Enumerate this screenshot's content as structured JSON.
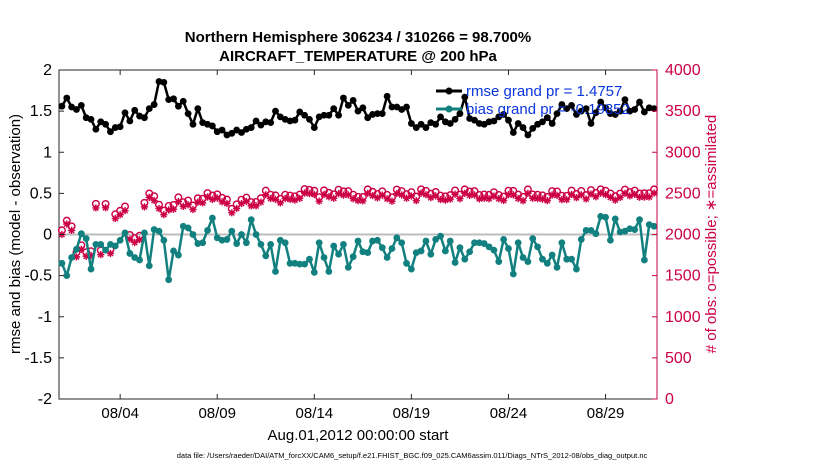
{
  "colors": {
    "rmse": "#000000",
    "bias": "#138080",
    "obs": "#CC0044",
    "legend_text": "#0B35DD",
    "zero_line": "#BDBDBD"
  },
  "chart_data": {
    "type": "line",
    "title": "Northern Hemisphere 306234 / 310266 = 98.700%",
    "subtitle": "AIRCRAFT_TEMPERATURE @ 200 hPa",
    "ylabel_left": "rmse and bias (model - observation)",
    "ylabel_right": "# of obs: o=possible; ∗=assimilated",
    "xlabel": "Aug.01,2012 00:00:00 start",
    "footnote": "data file: /Users/raeder/DAI/ATM_forcXX/CAM6_setup/f.e21.FHIST_BGC.f09_025.CAM6assim.011/Diags_NTrS_2012-08/obs_diag_output.nc",
    "xlim": [
      0.85,
      31.65
    ],
    "ylim_left": [
      -2,
      2
    ],
    "ylim_right": [
      0,
      4000
    ],
    "left_ticks": [
      -2,
      -1.5,
      -1,
      -0.5,
      0,
      0.5,
      1,
      1.5,
      2
    ],
    "left_tick_labels": [
      "-2",
      "-1.5",
      "-1",
      "-0.5",
      "0",
      "0.5",
      "1",
      "1.5",
      "2"
    ],
    "right_ticks": [
      0,
      500,
      1000,
      1500,
      2000,
      2500,
      3000,
      3500,
      4000
    ],
    "right_tick_labels": [
      "0",
      "500",
      "1000",
      "1500",
      "2000",
      "2500",
      "3000",
      "3500",
      "4000"
    ],
    "x_ticks": [
      4,
      9,
      14,
      19,
      24,
      29
    ],
    "x_tick_labels": [
      "08/04",
      "08/09",
      "08/14",
      "08/19",
      "08/24",
      "08/29"
    ],
    "zero_line_y": 0,
    "legend": {
      "position": "top-right",
      "entries": [
        "rmse grand pr = 1.4757",
        "bias grand pr = -0.19852"
      ]
    },
    "x": [
      1.0,
      1.25,
      1.5,
      1.75,
      2.0,
      2.25,
      2.5,
      2.75,
      3.0,
      3.25,
      3.5,
      3.75,
      4.0,
      4.25,
      4.5,
      4.75,
      5.0,
      5.25,
      5.5,
      5.75,
      6.0,
      6.25,
      6.5,
      6.75,
      7.0,
      7.25,
      7.5,
      7.75,
      8.0,
      8.25,
      8.5,
      8.75,
      9.0,
      9.25,
      9.5,
      9.75,
      10.0,
      10.25,
      10.5,
      10.75,
      11.0,
      11.25,
      11.5,
      11.75,
      12.0,
      12.25,
      12.5,
      12.75,
      13.0,
      13.25,
      13.5,
      13.75,
      14.0,
      14.25,
      14.5,
      14.75,
      15.0,
      15.25,
      15.5,
      15.75,
      16.0,
      16.25,
      16.5,
      16.75,
      17.0,
      17.25,
      17.5,
      17.75,
      18.0,
      18.25,
      18.5,
      18.75,
      19.0,
      19.25,
      19.5,
      19.75,
      20.0,
      20.25,
      20.5,
      20.75,
      21.0,
      21.25,
      21.5,
      21.75,
      22.0,
      22.25,
      22.5,
      22.75,
      23.0,
      23.25,
      23.5,
      23.75,
      24.0,
      24.25,
      24.5,
      24.75,
      25.0,
      25.25,
      25.5,
      25.75,
      26.0,
      26.25,
      26.5,
      26.75,
      27.0,
      27.25,
      27.5,
      27.75,
      28.0,
      28.25,
      28.5,
      28.75,
      29.0,
      29.25,
      29.5,
      29.75,
      30.0,
      30.25,
      30.5,
      30.75,
      31.0,
      31.25,
      31.5
    ],
    "series": [
      {
        "name": "rmse grand pr = 1.4757",
        "values": [
          1.56,
          1.66,
          1.55,
          1.52,
          1.57,
          1.42,
          1.4,
          1.28,
          1.37,
          1.34,
          1.25,
          1.3,
          1.31,
          1.48,
          1.38,
          1.51,
          1.44,
          1.42,
          1.53,
          1.58,
          1.86,
          1.85,
          1.64,
          1.65,
          1.56,
          1.62,
          1.47,
          1.34,
          1.53,
          1.36,
          1.34,
          1.32,
          1.25,
          1.27,
          1.21,
          1.23,
          1.27,
          1.24,
          1.28,
          1.3,
          1.38,
          1.33,
          1.37,
          1.36,
          1.5,
          1.43,
          1.4,
          1.38,
          1.39,
          1.49,
          1.45,
          1.4,
          1.3,
          1.43,
          1.45,
          1.45,
          1.53,
          1.45,
          1.66,
          1.57,
          1.63,
          1.5,
          1.54,
          1.42,
          1.46,
          1.47,
          1.47,
          1.68,
          1.55,
          1.55,
          1.52,
          1.55,
          1.35,
          1.3,
          1.34,
          1.3,
          1.36,
          1.34,
          1.43,
          1.37,
          1.35,
          1.4,
          1.47,
          1.67,
          1.41,
          1.39,
          1.35,
          1.34,
          1.37,
          1.38,
          1.43,
          1.46,
          1.39,
          1.24,
          1.35,
          1.3,
          1.21,
          1.29,
          1.34,
          1.37,
          1.42,
          1.35,
          1.47,
          1.58,
          1.53,
          1.57,
          1.46,
          1.5,
          1.53,
          1.35,
          1.48,
          1.61,
          1.54,
          1.47,
          1.46,
          1.5,
          1.64,
          1.5,
          1.52,
          1.61,
          1.49,
          1.54,
          1.53
        ]
      },
      {
        "name": "bias grand pr = -0.19852",
        "values": [
          -0.35,
          -0.5,
          -0.28,
          -0.18,
          0.01,
          -0.05,
          -0.42,
          -0.12,
          -0.12,
          -0.19,
          -0.12,
          -0.14,
          -0.07,
          0.02,
          -0.23,
          -0.28,
          -0.31,
          0.02,
          -0.38,
          0.06,
          0.04,
          -0.07,
          -0.55,
          -0.2,
          -0.25,
          0.1,
          0.08,
          0.0,
          -0.11,
          -0.1,
          0.05,
          0.2,
          -0.04,
          -0.07,
          -0.06,
          0.04,
          -0.11,
          0.0,
          -0.1,
          0.18,
          0.0,
          -0.12,
          -0.26,
          -0.12,
          -0.45,
          -0.07,
          -0.1,
          -0.35,
          -0.35,
          -0.36,
          -0.36,
          -0.3,
          -0.46,
          -0.1,
          -0.28,
          -0.45,
          -0.14,
          -0.24,
          -0.12,
          -0.4,
          -0.27,
          -0.08,
          -0.21,
          -0.22,
          -0.08,
          -0.07,
          -0.16,
          -0.28,
          -0.17,
          -0.04,
          -0.1,
          -0.35,
          -0.42,
          -0.22,
          -0.2,
          -0.08,
          -0.24,
          -0.06,
          -0.02,
          -0.2,
          -0.08,
          -0.34,
          -0.16,
          -0.3,
          -0.21,
          -0.1,
          -0.1,
          -0.11,
          -0.15,
          -0.19,
          -0.33,
          -0.06,
          -0.17,
          -0.48,
          -0.1,
          -0.28,
          -0.33,
          -0.05,
          -0.15,
          -0.3,
          -0.35,
          -0.25,
          -0.4,
          -0.1,
          -0.3,
          -0.3,
          -0.42,
          -0.06,
          0.05,
          0.05,
          0.01,
          0.22,
          0.21,
          -0.07,
          0.19,
          0.03,
          0.04,
          0.07,
          0.06,
          0.18,
          -0.31,
          0.12,
          0.1
        ]
      }
    ],
    "obs_possible": [
      2051,
      2168,
      2099,
      1782,
      1870,
      1784,
      1796,
      2373,
      1806,
      2371,
      1817,
      2246,
      2288,
      2341,
      1994,
      1955,
      1985,
      2385,
      2499,
      2465,
      2362,
      2290,
      2347,
      2359,
      2451,
      2392,
      2413,
      2352,
      2440,
      2435,
      2503,
      2474,
      2488,
      2446,
      2425,
      2312,
      2367,
      2423,
      2448,
      2394,
      2395,
      2440,
      2533,
      2484,
      2475,
      2433,
      2483,
      2473,
      2464,
      2485,
      2552,
      2543,
      2532,
      2455,
      2536,
      2506,
      2488,
      2544,
      2525,
      2527,
      2484,
      2458,
      2456,
      2548,
      2519,
      2492,
      2525,
      2482,
      2451,
      2546,
      2528,
      2489,
      2515,
      2460,
      2549,
      2531,
      2495,
      2517,
      2473,
      2464,
      2478,
      2535,
      2483,
      2548,
      2523,
      2528,
      2480,
      2486,
      2482,
      2514,
      2481,
      2461,
      2532,
      2530,
      2485,
      2458,
      2548,
      2487,
      2483,
      2476,
      2458,
      2527,
      2523,
      2471,
      2470,
      2534,
      2493,
      2529,
      2478,
      2540,
      2505,
      2549,
      2532,
      2499,
      2466,
      2497,
      2546,
      2515,
      2534,
      2498,
      2501,
      2502,
      2548
    ],
    "obs_assimilated": [
      1999,
      2127,
      2050,
      1728,
      1820,
      1736,
      1745,
      2323,
      1755,
      2325,
      1770,
      2194,
      2240,
      2290,
      1943,
      1903,
      1937,
      2336,
      2451,
      2413,
      2315,
      2241,
      2298,
      2307,
      2400,
      2342,
      2362,
      2304,
      2392,
      2384,
      2456,
      2427,
      2442,
      2397,
      2377,
      2264,
      2317,
      2376,
      2402,
      2348,
      2348,
      2394,
      2484,
      2437,
      2428,
      2384,
      2437,
      2426,
      2418,
      2439,
      2503,
      2496,
      2486,
      2405,
      2486,
      2459,
      2440,
      2496,
      2479,
      2481,
      2435,
      2412,
      2408,
      2501,
      2472,
      2445,
      2479,
      2434,
      2404,
      2498,
      2481,
      2441,
      2468,
      2411,
      2503,
      2484,
      2448,
      2469,
      2425,
      2417,
      2430,
      2489,
      2435,
      2500,
      2476,
      2480,
      2433,
      2440,
      2435,
      2467,
      2435,
      2413,
      2485,
      2482,
      2438,
      2410,
      2500,
      2441,
      2436,
      2429,
      2412,
      2480,
      2476,
      2424,
      2423,
      2486,
      2447,
      2482,
      2431,
      2493,
      2458,
      2502,
      2485,
      2453,
      2418,
      2450,
      2500,
      2469,
      2487,
      2452,
      2454,
      2455,
      2502
    ]
  }
}
